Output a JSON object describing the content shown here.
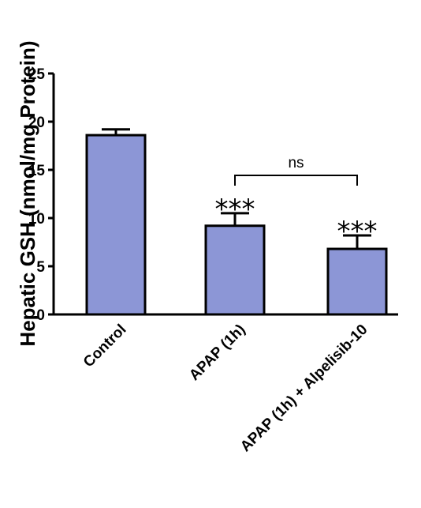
{
  "chart_data": {
    "type": "bar",
    "categories": [
      "Control",
      "APAP (1h)",
      "APAP (1h) + Alpelisib-10"
    ],
    "values": [
      18.6,
      9.2,
      6.8
    ],
    "errors": [
      0.6,
      1.3,
      1.4
    ],
    "significance": [
      "",
      "***",
      "***"
    ],
    "comparison": {
      "from": 1,
      "to": 2,
      "label": "ns"
    },
    "ylabel": "Hepatic GSH (nmol/mg Protein)",
    "xlabel": "",
    "title": "",
    "ylim": [
      0,
      25
    ],
    "yticks": [
      0,
      5,
      10,
      15,
      20,
      25
    ],
    "bar_color": "#8c96d6",
    "edge_color": "#000000",
    "grid": false
  }
}
